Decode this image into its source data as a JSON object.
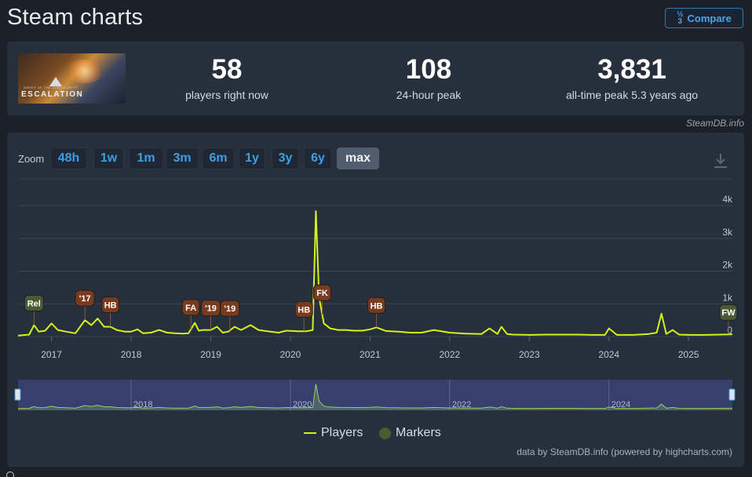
{
  "page": {
    "title": "Steam charts",
    "compare_label": "Compare",
    "compare_icon": "fraction-icon",
    "credit": "SteamDB.info"
  },
  "stats": [
    {
      "value": "58",
      "label": "players right now"
    },
    {
      "value": "108",
      "label": "24-hour peak"
    },
    {
      "value": "3,831",
      "label": "all-time peak 5.3 years ago"
    }
  ],
  "game_logo": {
    "subtitle": "ASHES OF THE SINGULARITY",
    "title": "ESCALATION"
  },
  "zoom": {
    "label": "Zoom",
    "options": [
      "48h",
      "1w",
      "1m",
      "3m",
      "6m",
      "1y",
      "3y",
      "6y",
      "max"
    ],
    "selected": "max"
  },
  "legend": {
    "players": "Players",
    "markers": "Markers"
  },
  "hc_credit": "data by SteamDB.info (powered by highcharts.com)",
  "colors": {
    "accent": "#3d9fe6",
    "players_line": "#d4f31a",
    "marker_brown": "#7a3a1c",
    "marker_green": "#4b5a31",
    "navigator_bg": "#363f6e"
  },
  "chart_data": {
    "type": "line",
    "title": "",
    "xlabel": "",
    "ylabel": "",
    "xlim": [
      2016.58,
      2025.55
    ],
    "ylim": [
      0,
      4000
    ],
    "y_ticks": [
      "0",
      "1k",
      "2k",
      "3k",
      "4k"
    ],
    "x_ticks": [
      "2017",
      "2018",
      "2019",
      "2020",
      "2021",
      "2022",
      "2023",
      "2024",
      "2025"
    ],
    "navigator_ticks": [
      "2018",
      "2020",
      "2022",
      "2024"
    ],
    "grid": true,
    "series": [
      {
        "name": "Players",
        "x": [
          2016.58,
          2016.72,
          2016.78,
          2016.84,
          2016.92,
          2017.0,
          2017.08,
          2017.18,
          2017.3,
          2017.42,
          2017.5,
          2017.58,
          2017.66,
          2017.74,
          2017.82,
          2017.92,
          2018.0,
          2018.08,
          2018.15,
          2018.25,
          2018.35,
          2018.45,
          2018.55,
          2018.65,
          2018.72,
          2018.8,
          2018.85,
          2018.9,
          2019.0,
          2019.08,
          2019.15,
          2019.22,
          2019.3,
          2019.38,
          2019.5,
          2019.6,
          2019.75,
          2019.85,
          2019.95,
          2020.1,
          2020.2,
          2020.28,
          2020.32,
          2020.36,
          2020.42,
          2020.5,
          2020.6,
          2020.7,
          2020.8,
          2020.9,
          2021.0,
          2021.08,
          2021.2,
          2021.35,
          2021.5,
          2021.65,
          2021.8,
          2022.0,
          2022.2,
          2022.4,
          2022.5,
          2022.6,
          2022.65,
          2022.72,
          2022.8,
          2023.0,
          2023.2,
          2023.4,
          2023.6,
          2023.8,
          2023.95,
          2024.0,
          2024.1,
          2024.3,
          2024.5,
          2024.6,
          2024.66,
          2024.72,
          2024.8,
          2024.88,
          2025.0,
          2025.2,
          2025.4,
          2025.55
        ],
        "y": [
          30,
          60,
          350,
          150,
          180,
          400,
          200,
          150,
          100,
          500,
          350,
          550,
          300,
          300,
          200,
          150,
          150,
          220,
          100,
          120,
          200,
          120,
          100,
          90,
          100,
          420,
          180,
          200,
          200,
          300,
          120,
          150,
          300,
          200,
          350,
          200,
          150,
          120,
          180,
          160,
          160,
          200,
          3831,
          1200,
          400,
          250,
          200,
          200,
          180,
          180,
          220,
          280,
          170,
          150,
          120,
          120,
          200,
          120,
          90,
          80,
          250,
          80,
          300,
          80,
          60,
          50,
          60,
          60,
          60,
          50,
          50,
          250,
          50,
          50,
          80,
          120,
          700,
          80,
          200,
          60,
          50,
          50,
          60,
          70
        ]
      }
    ],
    "markers": [
      {
        "label": "Rel",
        "x": 2016.78,
        "color": "green"
      },
      {
        "label": "'17",
        "x": 2017.42,
        "color": "brown"
      },
      {
        "label": "HB",
        "x": 2017.74,
        "color": "brown"
      },
      {
        "label": "FA",
        "x": 2018.75,
        "color": "brown"
      },
      {
        "label": "'19",
        "x": 2019.0,
        "color": "brown"
      },
      {
        "label": "'19",
        "x": 2019.24,
        "color": "brown"
      },
      {
        "label": "HB",
        "x": 2020.17,
        "color": "brown"
      },
      {
        "label": "FK",
        "x": 2020.4,
        "color": "brown"
      },
      {
        "label": "HB",
        "x": 2021.08,
        "color": "brown"
      },
      {
        "label": "FW",
        "x": 2025.5,
        "color": "green"
      }
    ]
  }
}
